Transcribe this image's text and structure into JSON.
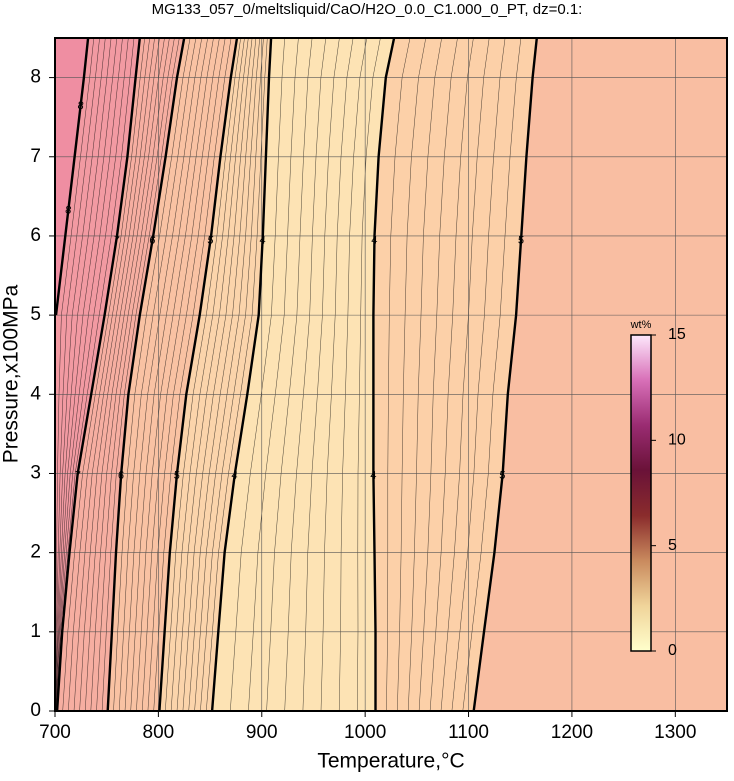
{
  "chart_data": {
    "type": "contour",
    "title": "MG133_057_0/meltsliquid/CaO/H2O_0.0_C1.000_0_PT, dz=0.1:",
    "x_label": "Temperature,°C",
    "y_label": "Pressure,x100MPa",
    "xlim": [
      700,
      1350
    ],
    "ylim": [
      0,
      8.5
    ],
    "xticks": [
      700,
      800,
      900,
      1000,
      1100,
      1200,
      1300
    ],
    "yticks": [
      0,
      1,
      2,
      3,
      4,
      5,
      6,
      7,
      8
    ],
    "grid": true,
    "background": "#f9bea2",
    "series": [
      {
        "name": "8",
        "color": "#ef8ea2",
        "y": [
          0,
          1,
          2,
          3,
          4,
          5,
          6,
          7,
          8,
          8.5
        ],
        "x": [
          null,
          null,
          null,
          null,
          null,
          701,
          710,
          719,
          728,
          732
        ]
      },
      {
        "name": "7",
        "color": "#f29aa2",
        "y": [
          0,
          1,
          2,
          3,
          4,
          5,
          6,
          7,
          8,
          8.5
        ],
        "x": [
          702,
          707,
          714,
          722,
          735,
          748,
          760,
          770,
          778,
          782
        ]
      },
      {
        "name": "6",
        "color": "#f6aea1",
        "y": [
          0,
          1,
          2,
          3,
          4,
          5,
          6,
          7,
          8,
          8.5
        ],
        "x": [
          751,
          755,
          759,
          764,
          771,
          782,
          795,
          807,
          818,
          825
        ]
      },
      {
        "name": "5",
        "color": "#f9c2a3",
        "y": [
          0,
          1,
          2,
          3,
          4,
          5,
          6,
          7,
          8,
          8.5
        ],
        "x": [
          801,
          806,
          811,
          818,
          827,
          840,
          851,
          860,
          870,
          876
        ]
      },
      {
        "name": "4",
        "color": "#fbd4ab",
        "y": [
          0,
          1,
          2,
          3,
          4,
          5,
          6,
          7,
          8,
          8.5
        ],
        "x": [
          852,
          858,
          864,
          874,
          886,
          897,
          901,
          904,
          907,
          909
        ]
      },
      {
        "name": "4",
        "color": "#fde3b4",
        "y": [
          0,
          1,
          2,
          3,
          4,
          5,
          6,
          7,
          8,
          8.5
        ],
        "x": [
          1010,
          1010,
          1009,
          1008,
          1008,
          1008,
          1009,
          1013,
          1020,
          1028
        ]
      },
      {
        "name": "5",
        "color": "#fcd0a8",
        "y": [
          0,
          1,
          2,
          3,
          4,
          5,
          6,
          7,
          8,
          8.5
        ],
        "x": [
          1105,
          1115,
          1125,
          1133,
          1138,
          1146,
          1151,
          1156,
          1162,
          1166
        ]
      }
    ],
    "colorbar": {
      "label": "wt%",
      "lim": [
        0,
        15
      ],
      "ticks": [
        0,
        5,
        10,
        15
      ],
      "colors": [
        "#ffffcc",
        "#f0d49a",
        "#c98a5e",
        "#8a2c2c",
        "#6a1238",
        "#9a2c72",
        "#d870b8",
        "#fde8fc"
      ]
    }
  }
}
